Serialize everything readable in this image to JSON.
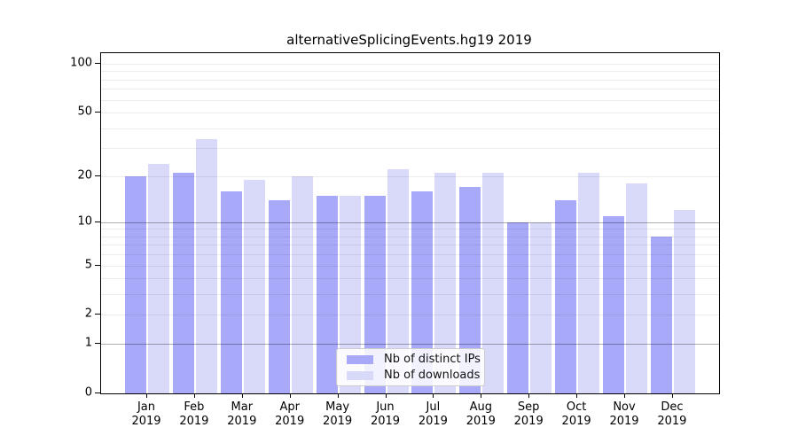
{
  "chart_data": {
    "type": "bar",
    "title": "alternativeSplicingEvents.hg19 2019",
    "categories": [
      "Jan",
      "Feb",
      "Mar",
      "Apr",
      "May",
      "Jun",
      "Jul",
      "Aug",
      "Sep",
      "Oct",
      "Nov",
      "Dec"
    ],
    "x_year_label": "2019",
    "series": [
      {
        "name": "Nb of distinct IPs",
        "color": "#a9a9fa",
        "values": [
          20,
          21,
          16,
          14,
          15,
          15,
          16,
          17,
          10,
          14,
          11,
          8
        ]
      },
      {
        "name": "Nb of downloads",
        "color": "#d9d9fa",
        "values": [
          24,
          34,
          19,
          20,
          15,
          22,
          21,
          21,
          10,
          21,
          18,
          12
        ]
      }
    ],
    "y_ticks": [
      100,
      50,
      20,
      10,
      5,
      2,
      1,
      0
    ],
    "y_scale": "log10(1+v)",
    "ylim": [
      0,
      116
    ],
    "grid": {
      "major_values": [
        1,
        10
      ],
      "minor_values": [
        2,
        3,
        4,
        5,
        6,
        7,
        8,
        9,
        20,
        30,
        40,
        50,
        60,
        70,
        80,
        90,
        100
      ]
    },
    "legend_position": "lower-center"
  }
}
